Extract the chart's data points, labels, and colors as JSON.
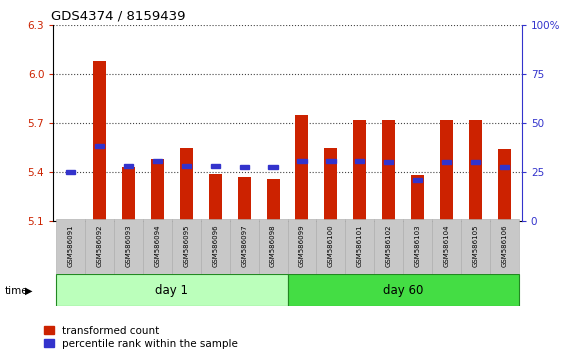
{
  "title": "GDS4374 / 8159439",
  "samples": [
    "GSM586091",
    "GSM586092",
    "GSM586093",
    "GSM586094",
    "GSM586095",
    "GSM586096",
    "GSM586097",
    "GSM586098",
    "GSM586099",
    "GSM586100",
    "GSM586101",
    "GSM586102",
    "GSM586103",
    "GSM586104",
    "GSM586105",
    "GSM586106"
  ],
  "red_values": [
    5.11,
    6.08,
    5.43,
    5.48,
    5.55,
    5.39,
    5.37,
    5.36,
    5.75,
    5.55,
    5.72,
    5.72,
    5.38,
    5.72,
    5.72,
    5.54
  ],
  "blue_values": [
    5.4,
    5.56,
    5.44,
    5.47,
    5.44,
    5.44,
    5.43,
    5.43,
    5.47,
    5.47,
    5.47,
    5.46,
    5.35,
    5.46,
    5.46,
    5.43
  ],
  "day1_count": 8,
  "day60_count": 8,
  "ymin": 5.1,
  "ymax": 6.3,
  "yticks": [
    5.1,
    5.4,
    5.7,
    6.0,
    6.3
  ],
  "y2min": 0,
  "y2max": 100,
  "y2ticks": [
    0,
    25,
    50,
    75,
    100
  ],
  "bar_color": "#cc2200",
  "blue_color": "#3333cc",
  "day1_color": "#bbffbb",
  "day60_color": "#44dd44",
  "day_border_color": "#228822",
  "sample_box_color": "#c8c8c8",
  "sample_box_edge": "#aaaaaa"
}
